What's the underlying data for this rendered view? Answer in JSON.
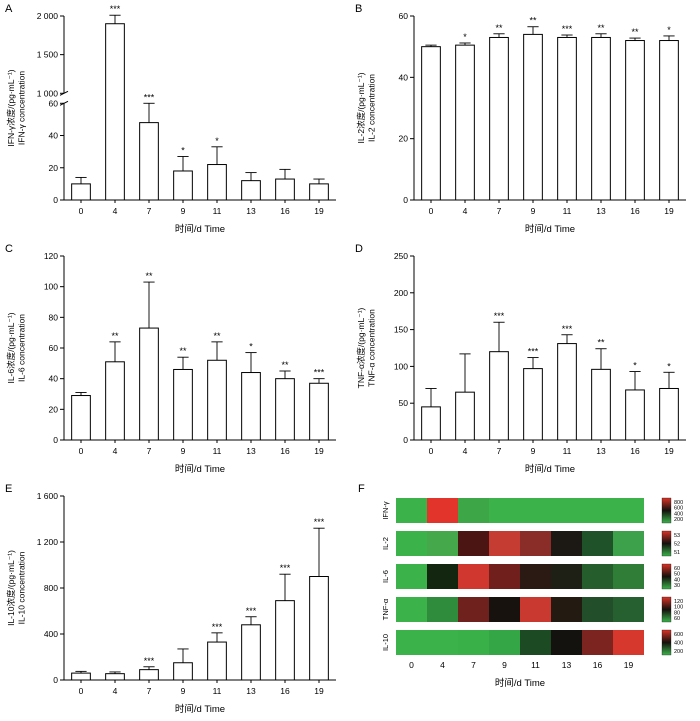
{
  "figure": {
    "xlabel": "时间/d Time",
    "time_points": [
      "0",
      "4",
      "7",
      "9",
      "11",
      "13",
      "16",
      "19"
    ]
  },
  "chart_data": [
    {
      "panel": "A",
      "type": "bar",
      "ylabel_cn": "IFN-γ浓度/(pg·mL⁻¹)",
      "ylabel_en": "IFN-γ concentration",
      "xlabel": "时间/d Time",
      "categories": [
        "0",
        "4",
        "7",
        "9",
        "11",
        "13",
        "16",
        "19"
      ],
      "values": [
        10,
        1900,
        48,
        18,
        22,
        12,
        13,
        10
      ],
      "errors": [
        4,
        110,
        12,
        9,
        11,
        5,
        6,
        3
      ],
      "significance": [
        "",
        "***",
        "***",
        "*",
        "*",
        "",
        "",
        ""
      ],
      "axis_break": true,
      "lower": {
        "lim": [
          0,
          60
        ],
        "ticks": [
          0,
          20,
          40,
          60
        ],
        "labels": [
          "0",
          "20",
          "40",
          "60"
        ]
      },
      "upper": {
        "lim": [
          1000,
          2000
        ],
        "ticks": [
          1000,
          1500,
          2000
        ],
        "labels": [
          "1 000",
          "1 500",
          "2 000"
        ]
      }
    },
    {
      "panel": "B",
      "type": "bar",
      "ylabel_cn": "IL-2浓度/(pg·mL⁻¹)",
      "ylabel_en": "IL-2 concentration",
      "xlabel": "时间/d Time",
      "categories": [
        "0",
        "4",
        "7",
        "9",
        "11",
        "13",
        "16",
        "19"
      ],
      "values": [
        50,
        50.5,
        53,
        54,
        53,
        53,
        52,
        52
      ],
      "errors": [
        0.5,
        0.7,
        1.2,
        2.5,
        0.8,
        1.2,
        0.8,
        1.5
      ],
      "significance": [
        "",
        "*",
        "**",
        "**",
        "***",
        "**",
        "**",
        "*"
      ],
      "axis_break": false,
      "ylim": [
        0,
        60
      ],
      "yticks": [
        0,
        20,
        40,
        60
      ],
      "ytick_labels": [
        "0",
        "20",
        "40",
        "60"
      ]
    },
    {
      "panel": "C",
      "type": "bar",
      "ylabel_cn": "IL-6浓度/(pg·mL⁻¹)",
      "ylabel_en": "IL-6 concentration",
      "xlabel": "时间/d Time",
      "categories": [
        "0",
        "4",
        "7",
        "9",
        "11",
        "13",
        "16",
        "19"
      ],
      "values": [
        29,
        51,
        73,
        46,
        52,
        44,
        40,
        37
      ],
      "errors": [
        2,
        13,
        30,
        8,
        12,
        13,
        5,
        3
      ],
      "significance": [
        "",
        "**",
        "**",
        "**",
        "**",
        "*",
        "**",
        "***"
      ],
      "axis_break": false,
      "ylim": [
        0,
        120
      ],
      "yticks": [
        0,
        20,
        40,
        60,
        80,
        100,
        120
      ],
      "ytick_labels": [
        "0",
        "20",
        "40",
        "60",
        "80",
        "100",
        "120"
      ]
    },
    {
      "panel": "D",
      "type": "bar",
      "ylabel_cn": "TNF-α浓度/(pg·mL⁻¹)",
      "ylabel_en": "TNF-α concentration",
      "xlabel": "时间/d Time",
      "categories": [
        "0",
        "4",
        "7",
        "9",
        "11",
        "13",
        "16",
        "19"
      ],
      "values": [
        45,
        65,
        120,
        97,
        131,
        96,
        68,
        70
      ],
      "errors": [
        25,
        52,
        40,
        15,
        12,
        28,
        25,
        22
      ],
      "significance": [
        "",
        "",
        "***",
        "***",
        "***",
        "**",
        "*",
        "*"
      ],
      "axis_break": false,
      "ylim": [
        0,
        250
      ],
      "yticks": [
        0,
        50,
        100,
        150,
        200,
        250
      ],
      "ytick_labels": [
        "0",
        "50",
        "100",
        "150",
        "200",
        "250"
      ]
    },
    {
      "panel": "E",
      "type": "bar",
      "ylabel_cn": "IL-10浓度/(pg·mL⁻¹)",
      "ylabel_en": "IL-10 concentration",
      "xlabel": "时间/d Time",
      "categories": [
        "0",
        "4",
        "7",
        "9",
        "11",
        "13",
        "16",
        "19"
      ],
      "values": [
        60,
        55,
        90,
        150,
        330,
        480,
        690,
        900
      ],
      "errors": [
        15,
        15,
        25,
        120,
        80,
        70,
        230,
        420
      ],
      "significance": [
        "",
        "",
        "***",
        "",
        "***",
        "***",
        "***",
        "***"
      ],
      "axis_break": false,
      "ylim": [
        0,
        1600
      ],
      "yticks": [
        0,
        400,
        800,
        1200,
        1600
      ],
      "ytick_labels": [
        "0",
        "400",
        "800",
        "1 200",
        "1 600"
      ]
    },
    {
      "panel": "F",
      "type": "heatmap",
      "xlabel": "时间/d Time",
      "categories": [
        "0",
        "4",
        "7",
        "9",
        "11",
        "13",
        "16",
        "19"
      ],
      "legend_gradient": [
        "#d93327",
        "#14100c",
        "#3bb24a"
      ],
      "rows": [
        {
          "label": "IFN-γ",
          "legend_labels": [
            "800",
            "600",
            "400",
            "200"
          ],
          "cell_colors": [
            "#3bb24a",
            "#e2342a",
            "#3da747",
            "#3bb24a",
            "#3bb24a",
            "#3bb24a",
            "#3bb24a",
            "#3bb24a"
          ]
        },
        {
          "label": "IL-2",
          "legend_labels": [
            "53",
            "52",
            "51"
          ],
          "cell_colors": [
            "#3bb24a",
            "#45a94b",
            "#4a1513",
            "#c53c33",
            "#8a2c27",
            "#1c1914",
            "#1f5228",
            "#3da04a"
          ]
        },
        {
          "label": "IL-6",
          "legend_labels": [
            "60",
            "50",
            "40",
            "30"
          ],
          "cell_colors": [
            "#3bb24a",
            "#132610",
            "#d0372e",
            "#701f1c",
            "#2b1a13",
            "#1f2015",
            "#265d2c",
            "#2f7d37"
          ]
        },
        {
          "label": "TNF-α",
          "legend_labels": [
            "120",
            "100",
            "80",
            "60"
          ],
          "cell_colors": [
            "#3bb24a",
            "#2e8c3c",
            "#6f211d",
            "#17120d",
            "#ca392f",
            "#231a11",
            "#224f29",
            "#276030"
          ]
        },
        {
          "label": "IL-10",
          "legend_labels": [
            "600",
            "400",
            "200"
          ],
          "cell_colors": [
            "#3bb24a",
            "#3bb24a",
            "#3ab049",
            "#35a645",
            "#1c4a23",
            "#14120e",
            "#7c241f",
            "#d6382e"
          ]
        }
      ]
    }
  ]
}
